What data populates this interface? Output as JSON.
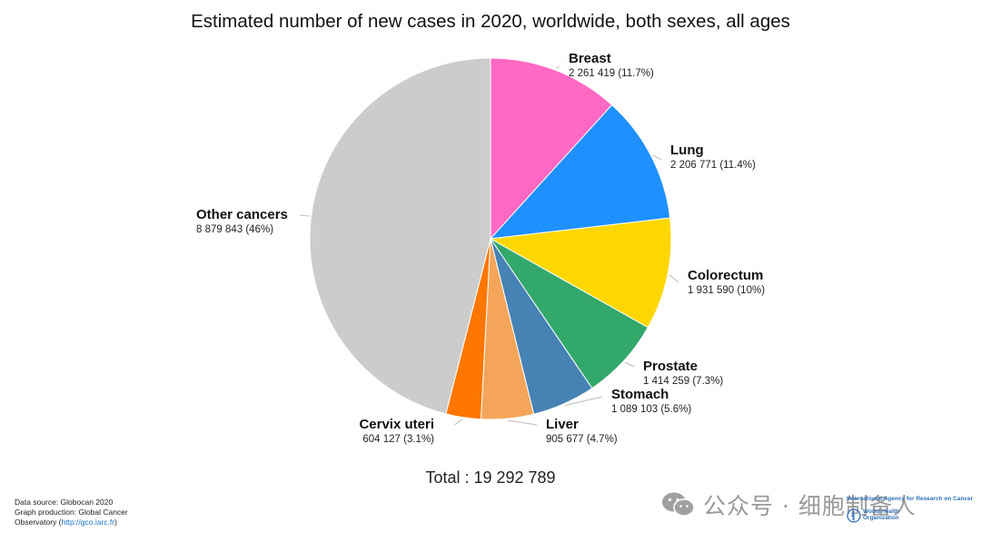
{
  "chart_data": {
    "type": "pie",
    "title": "Estimated number of new cases in 2020, worldwide, both sexes, all ages",
    "slices": [
      {
        "name": "Breast",
        "value": 2261419,
        "label": "2 261 419 (11.7%)",
        "color": "#ff69c4"
      },
      {
        "name": "Lung",
        "value": 2206771,
        "label": "2 206 771 (11.4%)",
        "color": "#1e90ff"
      },
      {
        "name": "Colorectum",
        "value": 1931590,
        "label": "1 931 590 (10%)",
        "color": "#ffd700"
      },
      {
        "name": "Prostate",
        "value": 1414259,
        "label": "1 414 259 (7.3%)",
        "color": "#33a86b"
      },
      {
        "name": "Stomach",
        "value": 1089103,
        "label": "1 089 103 (5.6%)",
        "color": "#4682b4"
      },
      {
        "name": "Liver",
        "value": 905677,
        "label": "905 677 (4.7%)",
        "color": "#f4a55a"
      },
      {
        "name": "Cervix uteri",
        "value": 604127,
        "label": "604 127 (3.1%)",
        "color": "#ff7700"
      },
      {
        "name": "Other cancers",
        "value": 8879843,
        "label": "8 879 843 (46%)",
        "color": "#cccccc"
      }
    ],
    "total_label": "Total : 19 292 789"
  },
  "source": {
    "line1": "Data source: Globocan 2020",
    "line2": "Graph production: Global Cancer",
    "line3_prefix": "Observatory (",
    "line3_link": "http://gco.iarc.fr",
    "line3_suffix": ")"
  },
  "watermark": {
    "text": "公众号 · 细胞制备人",
    "icon": "wechat-icon"
  },
  "logos": {
    "iarc": "International Agency for Research on Cancer",
    "who_line1": "World Health",
    "who_line2": "Organization",
    "icon": "who-emblem-icon"
  }
}
